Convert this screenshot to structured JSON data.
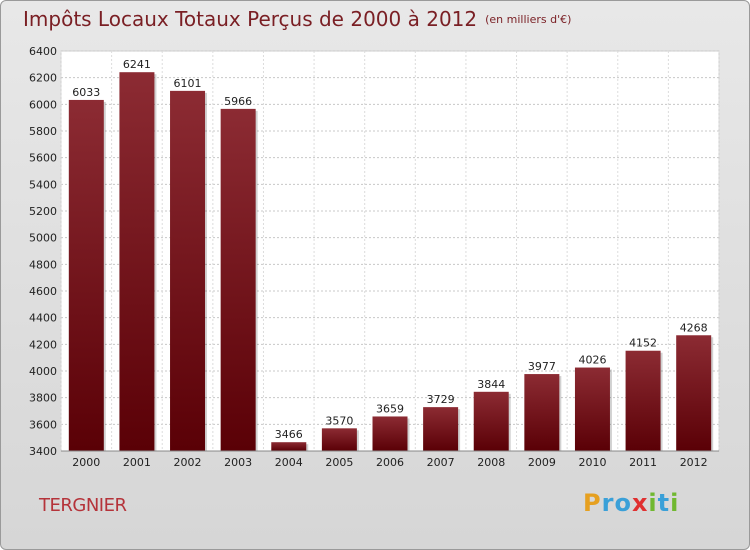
{
  "chart_data": {
    "type": "bar",
    "title": "Impôts Locaux Totaux Perçus de 2000 à 2012",
    "unit_label": "(en milliers d'€)",
    "categories": [
      "2000",
      "2001",
      "2002",
      "2003",
      "2004",
      "2005",
      "2006",
      "2007",
      "2008",
      "2009",
      "2010",
      "2011",
      "2012"
    ],
    "values": [
      6033,
      6241,
      6101,
      5966,
      3466,
      3570,
      3659,
      3729,
      3844,
      3977,
      4026,
      4152,
      4268
    ],
    "ylim": [
      3400,
      6400
    ],
    "yticks": [
      3400,
      3600,
      3800,
      4000,
      4200,
      4400,
      4600,
      4800,
      5000,
      5200,
      5400,
      5600,
      5800,
      6000,
      6200,
      6400
    ],
    "xlabel": "",
    "ylabel": "",
    "grid": true,
    "bar_color": "#7a1b22"
  },
  "footer": {
    "town": "TERGNIER",
    "logo_letters": [
      "P",
      "r",
      "o",
      "x",
      "i",
      "t",
      "i"
    ],
    "logo_colors": [
      "#e6a020",
      "#3aa0d8",
      "#3aa0d8",
      "#e03030",
      "#70b830",
      "#3aa0d8",
      "#70b830"
    ]
  }
}
